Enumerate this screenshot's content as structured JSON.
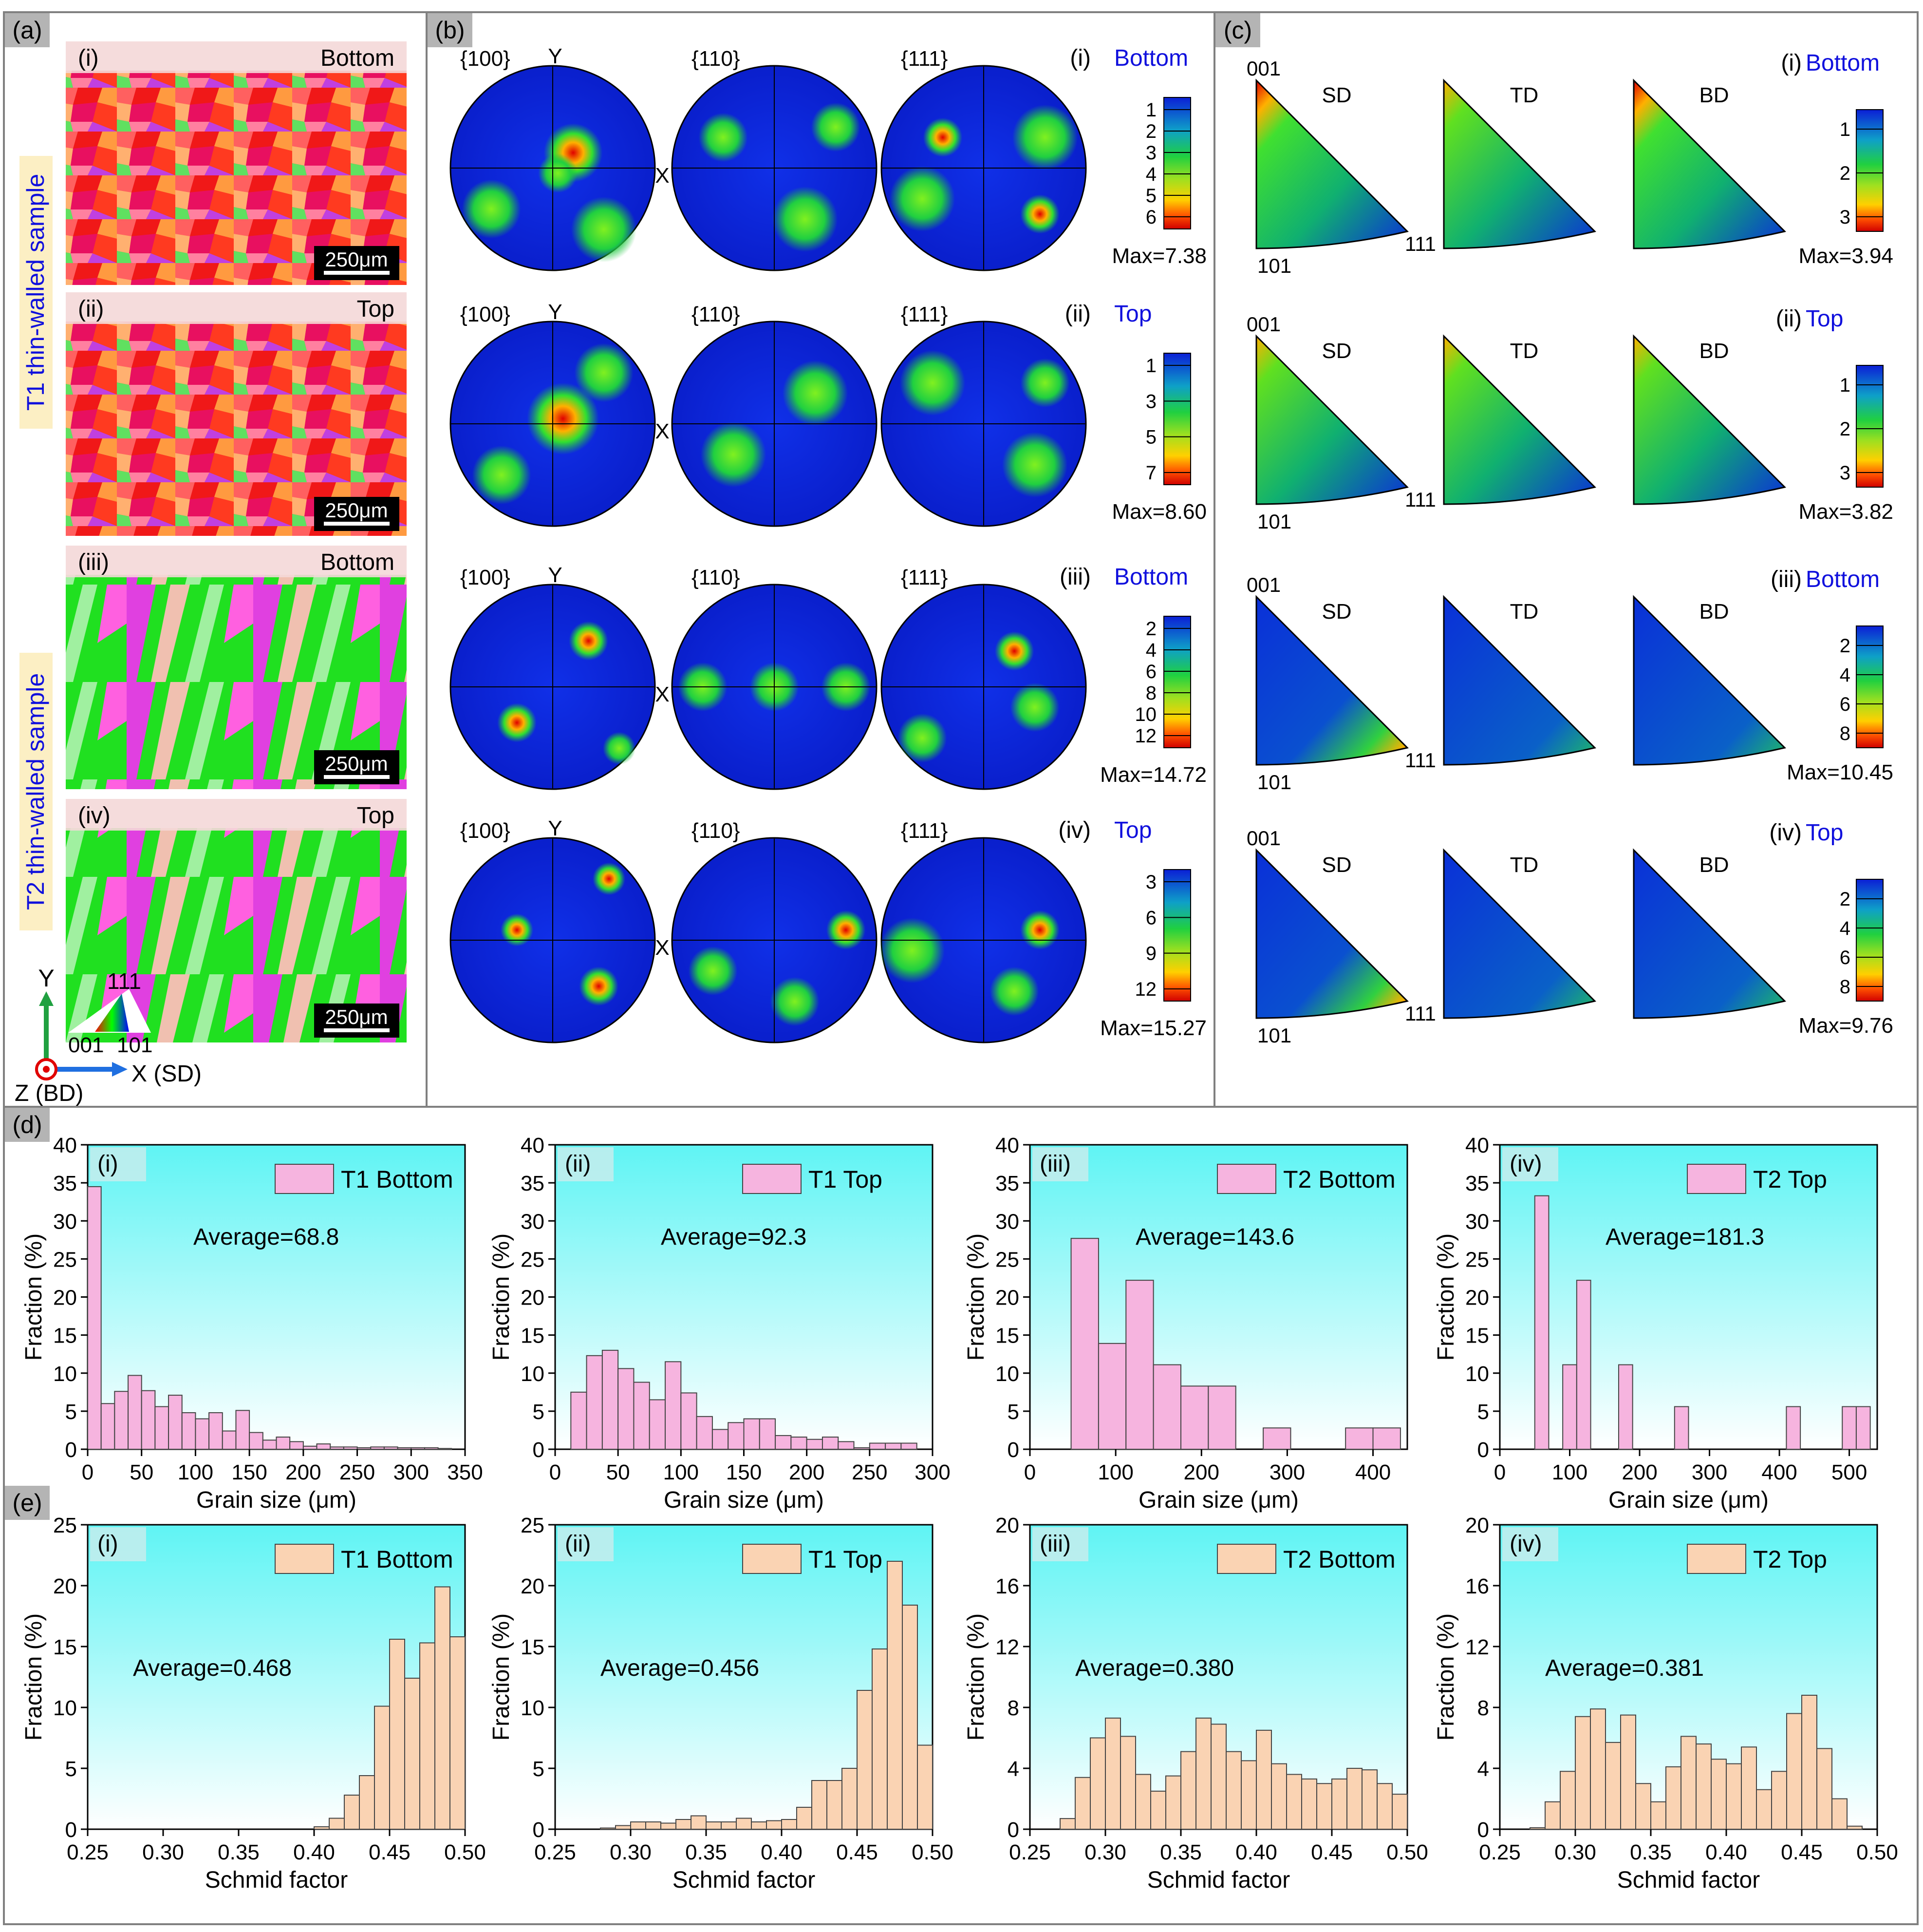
{
  "panels": {
    "a": {
      "tag": "(a)",
      "sample_labels": [
        "T1 thin-walled sample",
        "T2 thin-walled sample"
      ],
      "maps": [
        {
          "index": "(i)",
          "position": "Bottom",
          "scale": "250μm"
        },
        {
          "index": "(ii)",
          "position": "Top",
          "scale": "250μm"
        },
        {
          "index": "(iii)",
          "position": "Bottom",
          "scale": "250μm"
        },
        {
          "index": "(iv)",
          "position": "Top",
          "scale": "250μm"
        }
      ],
      "axes": {
        "y": "Y",
        "x": "X (SD)",
        "z": "Z (BD)"
      },
      "ipf_key": {
        "top": "111",
        "left": "001",
        "right": "101"
      }
    },
    "b": {
      "tag": "(b)",
      "pole_labels": [
        "{100}",
        "{110}",
        "{111}"
      ],
      "axis_y": "Y",
      "axis_x": "X",
      "rows": [
        {
          "index": "(i)",
          "position": "Bottom",
          "scale_ticks": [
            "1",
            "2",
            "3",
            "4",
            "5",
            "6"
          ],
          "max": "Max=7.38"
        },
        {
          "index": "(ii)",
          "position": "Top",
          "scale_ticks": [
            "1",
            "3",
            "5",
            "7"
          ],
          "max": "Max=8.60"
        },
        {
          "index": "(iii)",
          "position": "Bottom",
          "scale_ticks": [
            "2",
            "4",
            "6",
            "8",
            "10",
            "12"
          ],
          "max": "Max=14.72"
        },
        {
          "index": "(iv)",
          "position": "Top",
          "scale_ticks": [
            "3",
            "6",
            "9",
            "12"
          ],
          "max": "Max=15.27"
        }
      ]
    },
    "c": {
      "tag": "(c)",
      "directions": [
        "SD",
        "TD",
        "BD"
      ],
      "corners": {
        "top": "001",
        "bottom_left": "101",
        "right": "111"
      },
      "rows": [
        {
          "index": "(i)",
          "position": "Bottom",
          "scale_ticks": [
            "1",
            "2",
            "3"
          ],
          "max": "Max=3.94"
        },
        {
          "index": "(ii)",
          "position": "Top",
          "scale_ticks": [
            "1",
            "2",
            "3"
          ],
          "max": "Max=3.82"
        },
        {
          "index": "(iii)",
          "position": "Bottom",
          "scale_ticks": [
            "2",
            "4",
            "6",
            "8"
          ],
          "max": "Max=10.45"
        },
        {
          "index": "(iv)",
          "position": "Top",
          "scale_ticks": [
            "2",
            "4",
            "6",
            "8"
          ],
          "max": "Max=9.76"
        }
      ]
    },
    "d": {
      "tag": "(d)"
    },
    "e": {
      "tag": "(e)"
    }
  },
  "colors": {
    "bg_top": "#5ff4f4",
    "bg_bottom": "#ffffff",
    "grain_bar": "#f6b4df",
    "schmid_bar": "#fad3b3",
    "label_blue": "#1010dd",
    "tag_bg": "#b4b4b4",
    "legend_bg": "#ffffff"
  },
  "chart_data": [
    {
      "id": "d-i",
      "type": "bar",
      "index": "(i)",
      "legend": "T1 Bottom",
      "annotation": "Average=68.8",
      "xlabel": "Grain size (μm)",
      "ylabel": "Fraction (%)",
      "xlim": [
        0,
        350
      ],
      "ylim": [
        0,
        40
      ],
      "bin_width": 12.5,
      "xticks": [
        0,
        50,
        100,
        150,
        200,
        250,
        300,
        350
      ],
      "yticks": [
        0,
        5,
        10,
        15,
        20,
        25,
        30,
        35,
        40
      ],
      "x": [
        6.25,
        18.75,
        31.25,
        43.75,
        56.25,
        68.75,
        81.25,
        93.75,
        106.25,
        118.75,
        131.25,
        143.75,
        156.25,
        168.75,
        181.25,
        193.75,
        206.25,
        218.75,
        231.25,
        243.75,
        256.25,
        268.75,
        281.25,
        293.75,
        306.25,
        318.75,
        331.25
      ],
      "values": [
        34.5,
        6,
        7.6,
        9.7,
        7.7,
        5.6,
        7.1,
        4.8,
        4,
        4.8,
        2.4,
        5.1,
        2.2,
        1.2,
        1.6,
        1,
        0.4,
        0.7,
        0.3,
        0.3,
        0.2,
        0.3,
        0.3,
        0.2,
        0.2,
        0.2,
        0.1
      ]
    },
    {
      "id": "d-ii",
      "type": "bar",
      "index": "(ii)",
      "legend": "T1 Top",
      "annotation": "Average=92.3",
      "xlabel": "Grain size (μm)",
      "ylabel": "Fraction (%)",
      "xlim": [
        0,
        300
      ],
      "ylim": [
        0,
        40
      ],
      "bin_width": 12.5,
      "xticks": [
        0,
        50,
        100,
        150,
        200,
        250,
        300
      ],
      "yticks": [
        0,
        5,
        10,
        15,
        20,
        25,
        30,
        35,
        40
      ],
      "x": [
        18.75,
        31.25,
        43.75,
        56.25,
        68.75,
        81.25,
        93.75,
        106.25,
        118.75,
        131.25,
        143.75,
        156.25,
        168.75,
        181.25,
        193.75,
        206.25,
        218.75,
        231.25,
        243.75,
        256.25,
        268.75,
        281.25
      ],
      "values": [
        7.5,
        12.3,
        13,
        10.6,
        8.8,
        6.5,
        11.5,
        7.4,
        4.3,
        2.6,
        3.5,
        4,
        4,
        1.8,
        1.6,
        1.3,
        1.6,
        1,
        0.2,
        0.8,
        0.8,
        0.8
      ]
    },
    {
      "id": "d-iii",
      "type": "bar",
      "index": "(iii)",
      "legend": "T2 Bottom",
      "annotation": "Average=143.6",
      "xlabel": "Grain size (μm)",
      "ylabel": "Fraction (%)",
      "xlim": [
        0,
        440
      ],
      "ylim": [
        0,
        40
      ],
      "bin_width": 32,
      "xticks": [
        0,
        100,
        200,
        300,
        400
      ],
      "yticks": [
        0,
        5,
        10,
        15,
        20,
        25,
        30,
        35,
        40
      ],
      "x": [
        64,
        96,
        128,
        160,
        192,
        224,
        256,
        288,
        320,
        352,
        384,
        416
      ],
      "values": [
        27.7,
        13.9,
        22.2,
        11.1,
        8.3,
        8.3,
        0,
        2.8,
        0,
        0,
        2.8,
        2.8
      ]
    },
    {
      "id": "d-iv",
      "type": "bar",
      "index": "(iv)",
      "legend": "T2 Top",
      "annotation": "Average=181.3",
      "xlabel": "Grain size (μm)",
      "ylabel": "Fraction (%)",
      "xlim": [
        0,
        540
      ],
      "ylim": [
        0,
        40
      ],
      "bin_width": 20,
      "xticks": [
        0,
        100,
        200,
        300,
        400,
        500
      ],
      "yticks": [
        0,
        5,
        10,
        15,
        20,
        25,
        30,
        35,
        40
      ],
      "x": [
        60,
        80,
        100,
        120,
        140,
        160,
        180,
        200,
        220,
        240,
        260,
        280,
        300,
        320,
        340,
        360,
        380,
        400,
        420,
        440,
        460,
        480,
        500,
        520
      ],
      "values": [
        33.3,
        0,
        11.1,
        22.2,
        0,
        0,
        11.1,
        0,
        0,
        0,
        5.6,
        0,
        0,
        0,
        0,
        0,
        0,
        0,
        5.6,
        0,
        0,
        0,
        5.6,
        5.6
      ]
    },
    {
      "id": "e-i",
      "type": "bar",
      "index": "(i)",
      "legend": "T1 Bottom",
      "annotation": "Average=0.468",
      "xlabel": "Schmid factor",
      "ylabel": "Fraction (%)",
      "xlim": [
        0.25,
        0.5
      ],
      "ylim": [
        0,
        25
      ],
      "bin_width": 0.01,
      "xticks": [
        0.25,
        0.3,
        0.35,
        0.4,
        0.45,
        0.5
      ],
      "yticks": [
        0,
        5,
        10,
        15,
        20,
        25
      ],
      "x": [
        0.405,
        0.415,
        0.425,
        0.435,
        0.445,
        0.455,
        0.465,
        0.475,
        0.485,
        0.495
      ],
      "values": [
        0.2,
        0.9,
        2.8,
        4.4,
        10.1,
        15.6,
        12.4,
        15.3,
        19.9,
        15.8
      ]
    },
    {
      "id": "e-ii",
      "type": "bar",
      "index": "(ii)",
      "legend": "T1 Top",
      "annotation": "Average=0.456",
      "xlabel": "Schmid factor",
      "ylabel": "Fraction (%)",
      "xlim": [
        0.25,
        0.5
      ],
      "ylim": [
        0,
        25
      ],
      "bin_width": 0.01,
      "xticks": [
        0.25,
        0.3,
        0.35,
        0.4,
        0.45,
        0.5
      ],
      "yticks": [
        0,
        5,
        10,
        15,
        20,
        25
      ],
      "x": [
        0.285,
        0.295,
        0.305,
        0.315,
        0.325,
        0.335,
        0.345,
        0.355,
        0.365,
        0.375,
        0.385,
        0.395,
        0.405,
        0.415,
        0.425,
        0.435,
        0.445,
        0.455,
        0.465,
        0.475,
        0.485,
        0.495
      ],
      "values": [
        0.1,
        0.3,
        0.6,
        0.6,
        0.5,
        0.8,
        1.1,
        0.6,
        0.6,
        0.9,
        0.6,
        0.7,
        0.8,
        1.8,
        4,
        4,
        5,
        11.4,
        14.8,
        22,
        18.4,
        6.9
      ]
    },
    {
      "id": "e-iii",
      "type": "bar",
      "index": "(iii)",
      "legend": "T2 Bottom",
      "annotation": "Average=0.380",
      "xlabel": "Schmid factor",
      "ylabel": "Fraction (%)",
      "xlim": [
        0.25,
        0.5
      ],
      "ylim": [
        0,
        20
      ],
      "bin_width": 0.01,
      "xticks": [
        0.25,
        0.3,
        0.35,
        0.4,
        0.45,
        0.5
      ],
      "yticks": [
        0,
        4,
        8,
        12,
        16,
        20
      ],
      "x": [
        0.275,
        0.285,
        0.295,
        0.305,
        0.315,
        0.325,
        0.335,
        0.345,
        0.355,
        0.365,
        0.375,
        0.385,
        0.395,
        0.405,
        0.415,
        0.425,
        0.435,
        0.445,
        0.455,
        0.465,
        0.475,
        0.485,
        0.495
      ],
      "values": [
        0.7,
        3.4,
        6,
        7.3,
        6.1,
        3.6,
        2.5,
        3.5,
        5.1,
        7.3,
        6.9,
        5.1,
        4.5,
        6.5,
        4.3,
        3.6,
        3.3,
        3,
        3.3,
        4,
        3.9,
        3,
        2.3
      ]
    },
    {
      "id": "e-iv",
      "type": "bar",
      "index": "(iv)",
      "legend": "T2 Top",
      "annotation": "Average=0.381",
      "xlabel": "Schmid factor",
      "ylabel": "Fraction (%)",
      "xlim": [
        0.25,
        0.5
      ],
      "ylim": [
        0,
        20
      ],
      "bin_width": 0.01,
      "xticks": [
        0.25,
        0.3,
        0.35,
        0.4,
        0.45,
        0.5
      ],
      "yticks": [
        0,
        4,
        8,
        12,
        16,
        20
      ],
      "x": [
        0.275,
        0.285,
        0.295,
        0.305,
        0.315,
        0.325,
        0.335,
        0.345,
        0.355,
        0.365,
        0.375,
        0.385,
        0.395,
        0.405,
        0.415,
        0.425,
        0.435,
        0.445,
        0.455,
        0.465,
        0.475,
        0.485
      ],
      "values": [
        0.1,
        1.8,
        3.8,
        7.4,
        7.9,
        5.7,
        7.5,
        3,
        1.8,
        4.1,
        6.1,
        5.6,
        4.6,
        4.3,
        5.4,
        2.6,
        3.8,
        7.6,
        8.8,
        5.3,
        2,
        0.2
      ]
    }
  ]
}
